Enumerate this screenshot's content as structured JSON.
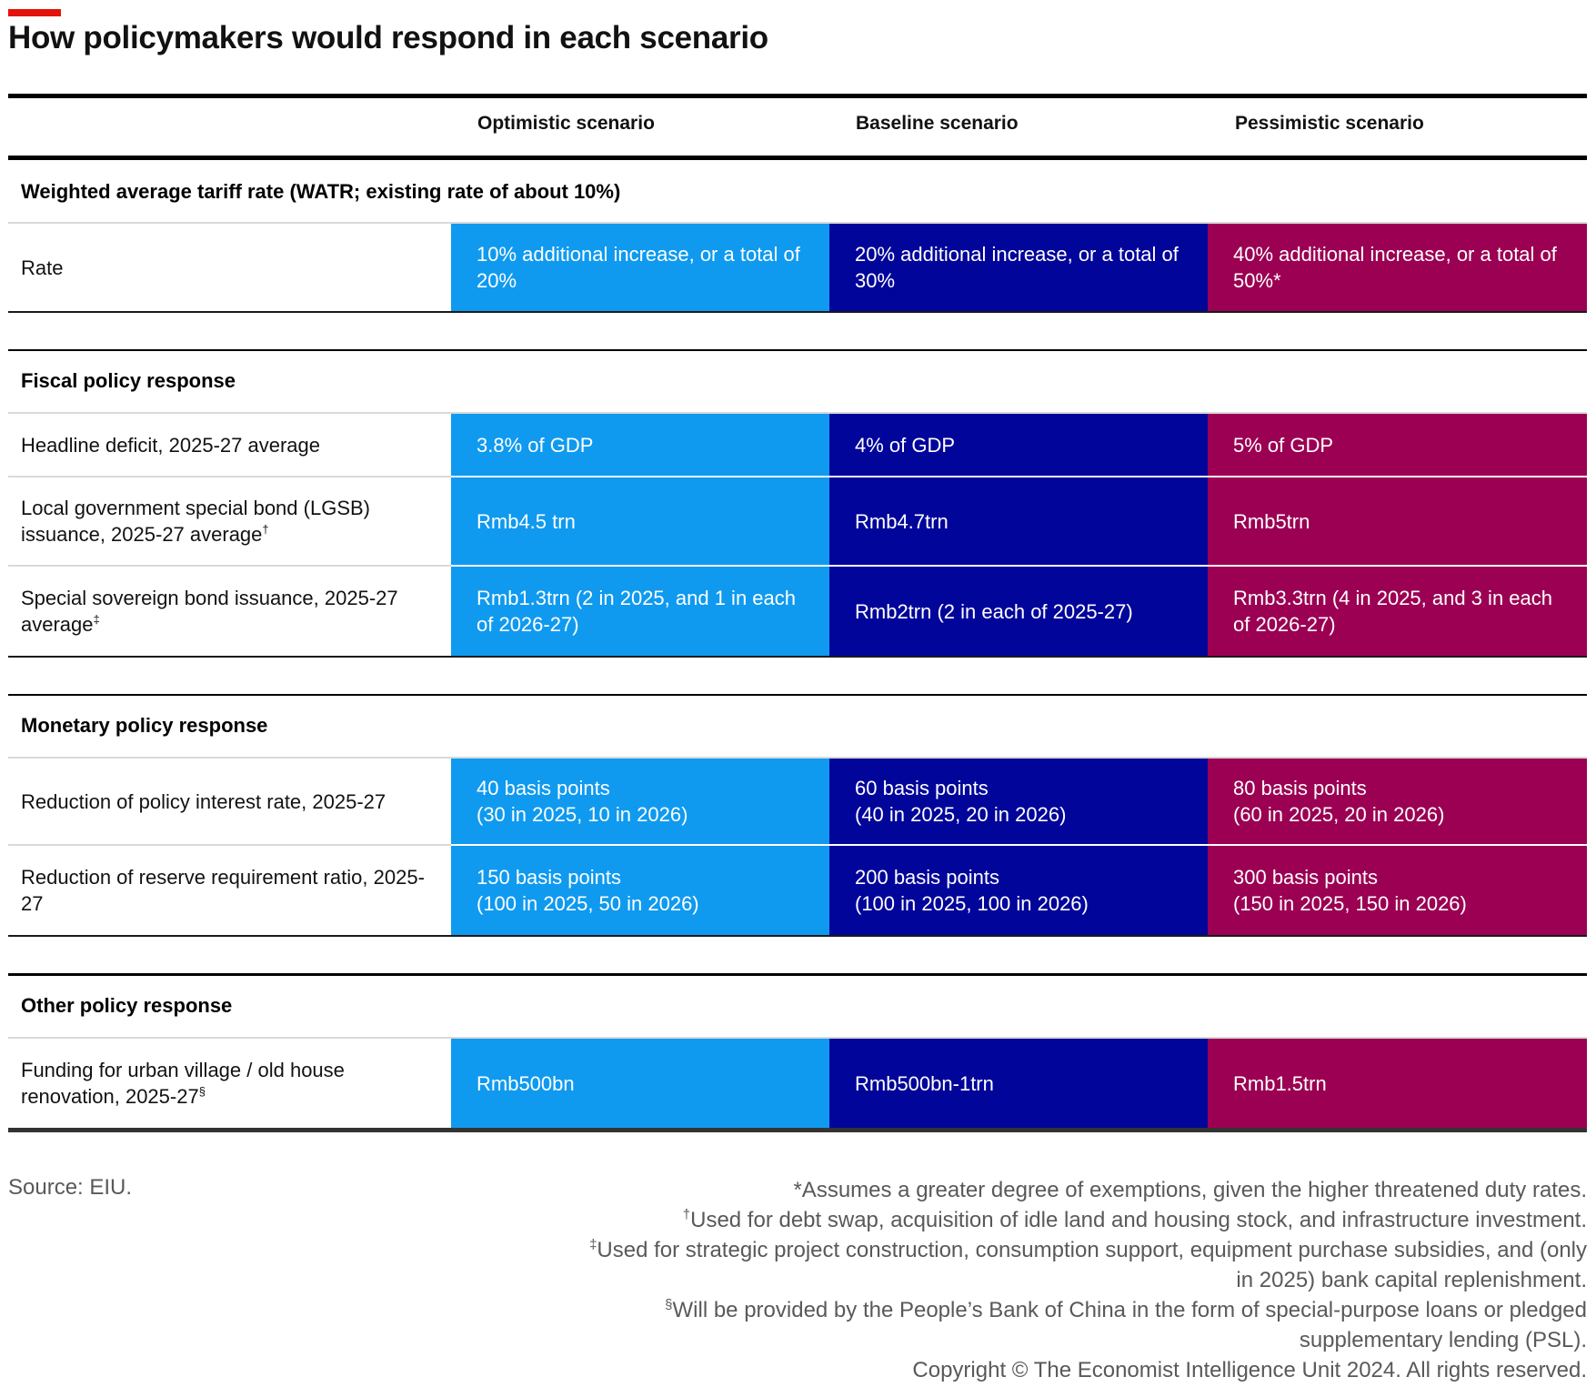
{
  "title": "How policymakers would respond in each scenario",
  "columns": [
    "Optimistic scenario",
    "Baseline scenario",
    "Pessimistic scenario"
  ],
  "colors": {
    "optimistic": "#0f9af0",
    "baseline": "#02059a",
    "pessimistic": "#9b0053",
    "accent": "#e3120b"
  },
  "sections": [
    {
      "title": "Weighted average tariff rate (WATR; existing rate of about 10%)",
      "rows": [
        {
          "label": "Rate",
          "mark": "",
          "values": [
            "10% additional increase, or a total of 20%",
            "20% additional increase, or a total of 30%",
            "40% additional increase, or a total of 50%*"
          ]
        }
      ]
    },
    {
      "title": "Fiscal policy response",
      "rows": [
        {
          "label": "Headline deficit, 2025-27 average",
          "mark": "",
          "values": [
            "3.8% of GDP",
            "4% of GDP",
            "5% of GDP"
          ]
        },
        {
          "label": "Local government special bond (LGSB) issuance, 2025-27 average",
          "mark": "†",
          "values": [
            "Rmb4.5 trn",
            "Rmb4.7trn",
            "Rmb5trn"
          ]
        },
        {
          "label": "Special sovereign bond issuance, 2025-27 average",
          "mark": "‡",
          "values": [
            "Rmb1.3trn (2 in 2025, and 1 in each of 2026-27)",
            "Rmb2trn (2 in each of 2025-27)",
            "Rmb3.3trn (4 in 2025, and 3 in each of 2026-27)"
          ]
        }
      ]
    },
    {
      "title": "Monetary policy response",
      "rows": [
        {
          "label": "Reduction of policy interest rate, 2025-27",
          "mark": "",
          "values": [
            "40 basis points\n(30 in 2025, 10 in 2026)",
            "60 basis points\n(40 in 2025, 20 in 2026)",
            "80 basis points\n(60 in 2025, 20 in 2026)"
          ]
        },
        {
          "label": "Reduction of reserve requirement ratio, 2025-27",
          "mark": "",
          "values": [
            "150 basis points\n(100 in 2025, 50 in 2026)",
            "200 basis points\n(100 in 2025, 100 in 2026)",
            "300 basis points\n(150 in 2025, 150 in 2026)"
          ]
        }
      ]
    },
    {
      "title": "Other policy response",
      "rows": [
        {
          "label": "Funding for urban village / old house renovation, 2025-27",
          "mark": "§",
          "values": [
            "Rmb500bn",
            "Rmb500bn-1trn",
            "Rmb1.5trn"
          ]
        }
      ]
    }
  ],
  "source": "Source: EIU.",
  "footnotes": [
    {
      "mark": "",
      "text": "*Assumes a greater degree of exemptions, given the higher threatened duty rates."
    },
    {
      "mark": "†",
      "text": "Used for debt swap, acquisition of idle land and housing stock, and infrastructure investment."
    },
    {
      "mark": "‡",
      "text": "Used for strategic project construction, consumption support, equipment purchase subsidies, and (only in 2025) bank capital replenishment."
    },
    {
      "mark": "§",
      "text": "Will be provided by the People’s Bank of China in the form of special-purpose loans or pledged supplementary lending (PSL)."
    },
    {
      "mark": "",
      "text": "Copyright © The Economist Intelligence Unit 2024. All rights reserved."
    }
  ]
}
